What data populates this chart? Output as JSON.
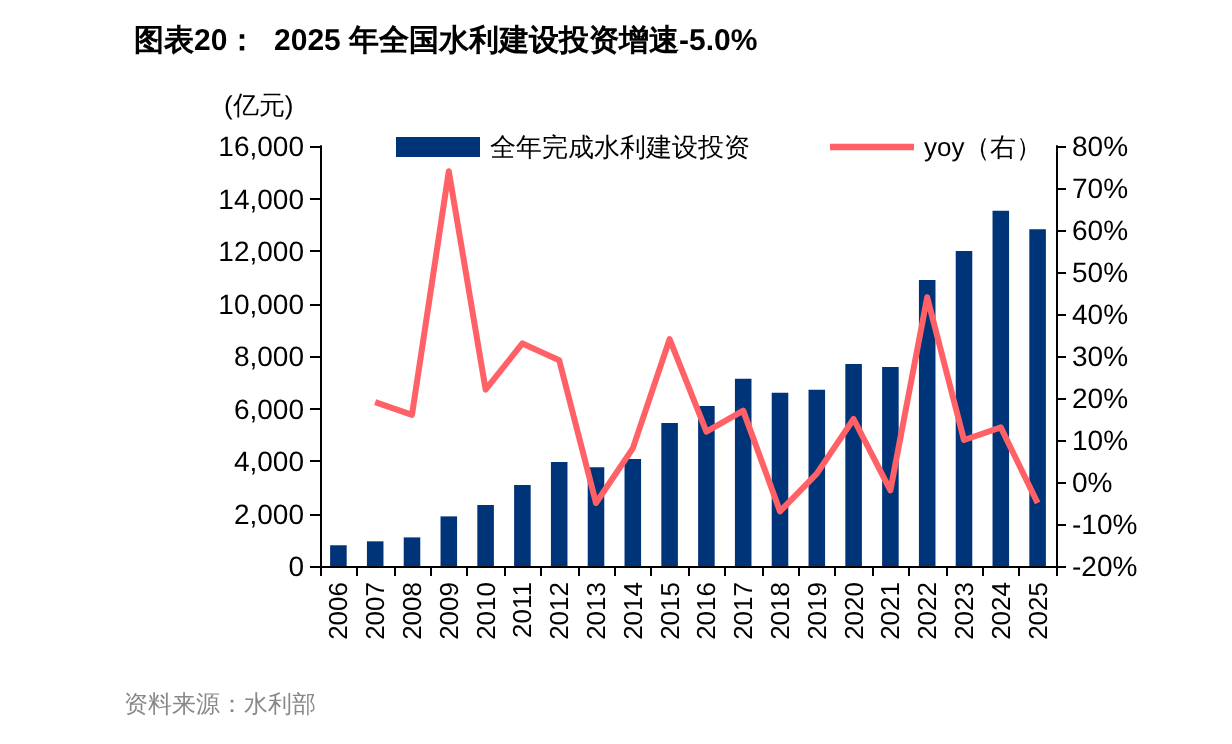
{
  "chart_data": {
    "type": "bar",
    "title": "图表20：  2025 年全国水利建设投资增速-5.0%",
    "ylabel": "(亿元)",
    "annotations": [
      "资料来源：水利部"
    ],
    "categories": [
      "2006",
      "2007",
      "2008",
      "2009",
      "2010",
      "2011",
      "2012",
      "2013",
      "2014",
      "2015",
      "2016",
      "2017",
      "2018",
      "2019",
      "2020",
      "2021",
      "2022",
      "2023",
      "2024",
      "2025"
    ],
    "series": [
      {
        "name": "全年完成水利建设投资",
        "color": "#003478",
        "values": [
          790,
          940,
          1090,
          1890,
          2320,
          3090,
          3960,
          3760,
          4080,
          5450,
          6100,
          7130,
          6600,
          6710,
          7700,
          7580,
          10900,
          12000,
          13530,
          12830
        ]
      },
      {
        "name": "yoy（右）",
        "type": "line",
        "axis": "y2",
        "color": "#ff6166",
        "values": [
          null,
          19,
          16,
          74,
          22,
          33,
          29,
          -5,
          8,
          34,
          12,
          17,
          -7,
          2,
          15,
          -2,
          44,
          10,
          13,
          -5
        ]
      }
    ],
    "ylim": [
      0,
      16000
    ],
    "yticks": [
      {
        "value": 0,
        "label": "0"
      },
      {
        "value": 2000,
        "label": "2,000"
      },
      {
        "value": 4000,
        "label": "4,000"
      },
      {
        "value": 6000,
        "label": "6,000"
      },
      {
        "value": 8000,
        "label": "8,000"
      },
      {
        "value": 10000,
        "label": "10,000"
      },
      {
        "value": 12000,
        "label": "12,000"
      },
      {
        "value": 14000,
        "label": "14,000"
      },
      {
        "value": 16000,
        "label": "16,000"
      }
    ],
    "y2lim": [
      -20,
      80
    ],
    "y2ticks": [
      {
        "value": -20,
        "label": "-20%"
      },
      {
        "value": -10,
        "label": "-10%"
      },
      {
        "value": 0,
        "label": "0%"
      },
      {
        "value": 10,
        "label": "10%"
      },
      {
        "value": 20,
        "label": "20%"
      },
      {
        "value": 30,
        "label": "30%"
      },
      {
        "value": 40,
        "label": "40%"
      },
      {
        "value": 50,
        "label": "50%"
      },
      {
        "value": 60,
        "label": "60%"
      },
      {
        "value": 70,
        "label": "70%"
      },
      {
        "value": 80,
        "label": "80%"
      }
    ],
    "grid": false,
    "legend": "top",
    "marker": "none",
    "line_style": "solid"
  }
}
